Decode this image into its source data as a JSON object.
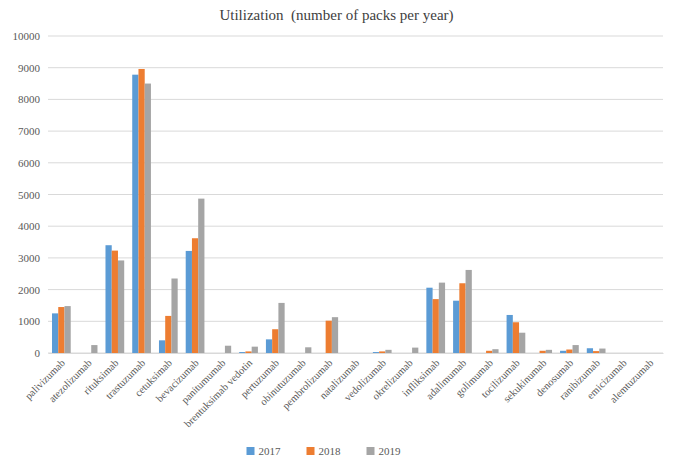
{
  "chart_data": {
    "type": "bar",
    "title": "Utilization  (number of packs per year)",
    "categories": [
      "palivizumab",
      "atezolizumab",
      "rituksimab",
      "trastuzumab",
      "cetuksimab",
      "bevacizumab",
      "panitumumab",
      "brentuksimab vedotin",
      "pertuzumab",
      "obinutuzumab",
      "pembrolizumab",
      "natalizumab",
      "vedolizumab",
      "okrelizumab",
      "infliksimab",
      "adalimumab",
      "golimumab",
      "tocilizumab",
      "sekukinumab",
      "denosumab",
      "ranibizumab",
      "emicizumab",
      "alemtuzumab"
    ],
    "series": [
      {
        "name": "2017",
        "color": "#5b9bd5",
        "values": [
          1250,
          0,
          3400,
          8780,
          400,
          3220,
          0,
          30,
          430,
          0,
          0,
          0,
          30,
          0,
          2060,
          1650,
          0,
          1200,
          0,
          70,
          150,
          0,
          0
        ]
      },
      {
        "name": "2018",
        "color": "#ed7d31",
        "values": [
          1450,
          0,
          3230,
          8960,
          1170,
          3620,
          0,
          50,
          750,
          0,
          1020,
          0,
          50,
          0,
          1700,
          2200,
          70,
          970,
          70,
          110,
          60,
          0,
          0
        ]
      },
      {
        "name": "2019",
        "color": "#a5a5a5",
        "values": [
          1480,
          250,
          2920,
          8500,
          2350,
          4870,
          230,
          200,
          1580,
          180,
          1130,
          0,
          100,
          170,
          2220,
          2620,
          120,
          640,
          100,
          250,
          140,
          0,
          0
        ]
      }
    ],
    "ylim": [
      0,
      10000
    ],
    "yticks": [
      0,
      1000,
      2000,
      3000,
      4000,
      5000,
      6000,
      7000,
      8000,
      9000,
      10000
    ],
    "grid": true,
    "legend": "bottom"
  }
}
